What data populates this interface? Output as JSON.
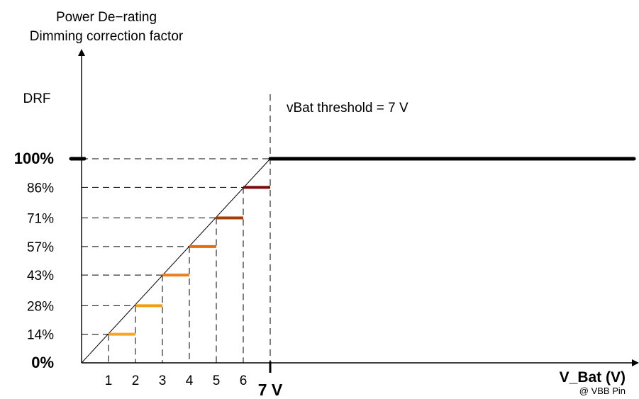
{
  "chart_data": {
    "type": "line",
    "title_lines": [
      "Power De−rating",
      "Dimming correction factor"
    ],
    "y_axis_label": "DRF",
    "x_axis_label": "V_Bat (V)",
    "x_axis_sublabel": "@ VBB Pin",
    "threshold_label": "vBat threshold = 7 V",
    "threshold_value": 7,
    "threshold_tick_label": "7 V",
    "xlim": [
      0,
      21
    ],
    "ylim": [
      0,
      1.05
    ],
    "x_ticks": [
      {
        "value": 1,
        "label": "1"
      },
      {
        "value": 2,
        "label": "2"
      },
      {
        "value": 3,
        "label": "3"
      },
      {
        "value": 4,
        "label": "4"
      },
      {
        "value": 5,
        "label": "5"
      },
      {
        "value": 6,
        "label": "6"
      }
    ],
    "y_ticks": [
      {
        "value": 0,
        "label": "0%",
        "bold": true
      },
      {
        "value": 0.14,
        "label": "14%"
      },
      {
        "value": 0.28,
        "label": "28%"
      },
      {
        "value": 0.43,
        "label": "43%"
      },
      {
        "value": 0.57,
        "label": "57%"
      },
      {
        "value": 0.71,
        "label": "71%"
      },
      {
        "value": 0.86,
        "label": "86%"
      },
      {
        "value": 1.0,
        "label": "100%",
        "bold": true
      }
    ],
    "ideal_line": {
      "x": [
        0,
        7
      ],
      "y": [
        0,
        1.0
      ]
    },
    "steps": [
      {
        "x_start": 1,
        "x_end": 2,
        "y": 0.14,
        "color": "#f5a623"
      },
      {
        "x_start": 2,
        "x_end": 3,
        "y": 0.28,
        "color": "#f59b1c"
      },
      {
        "x_start": 3,
        "x_end": 4,
        "y": 0.43,
        "color": "#f07e1b"
      },
      {
        "x_start": 4,
        "x_end": 5,
        "y": 0.57,
        "color": "#ea6a12"
      },
      {
        "x_start": 5,
        "x_end": 6,
        "y": 0.71,
        "color": "#9e3f0c"
      },
      {
        "x_start": 6,
        "x_end": 7,
        "y": 0.86,
        "color": "#7a0a06"
      }
    ],
    "full_power_line": {
      "x_start": 7,
      "x_end": 20.5,
      "y": 1.0,
      "color": "#000000"
    }
  }
}
